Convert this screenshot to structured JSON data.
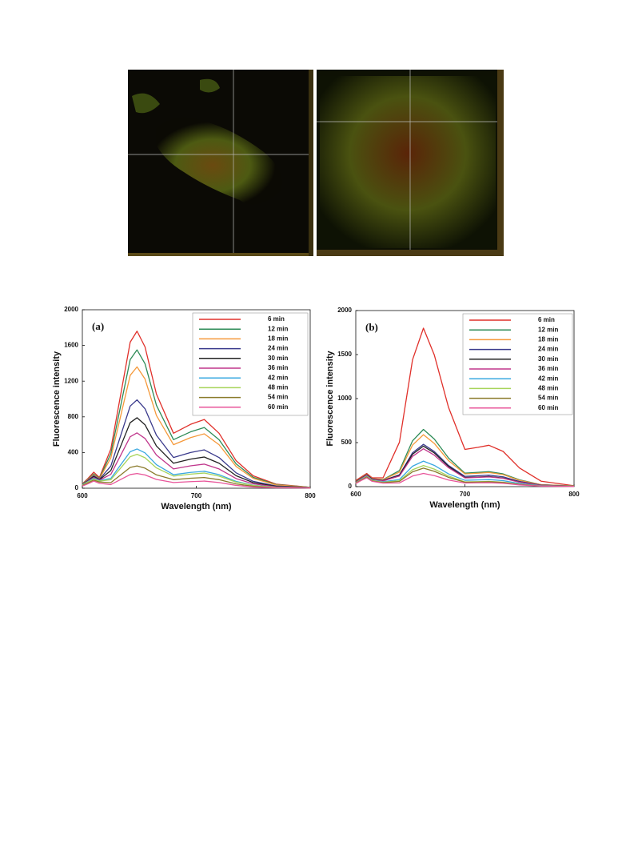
{
  "chart_data": [
    {
      "type": "line",
      "panel_label": "(a)",
      "x_label": "Wavelength (nm)",
      "y_label": "Fluorescence intensity",
      "x": [
        600,
        605,
        610,
        615,
        625,
        635,
        642,
        648,
        655,
        665,
        680,
        695,
        707,
        720,
        735,
        750,
        770,
        800
      ],
      "xlim": [
        600,
        800
      ],
      "xticks": [
        600,
        700,
        800
      ],
      "ylim": [
        0,
        2000
      ],
      "yticks": [
        0,
        400,
        800,
        1200,
        1600,
        2000
      ],
      "legend": "upper right",
      "series": [
        {
          "name": "6 min",
          "color": "#e0302a",
          "values": [
            50,
            110,
            180,
            120,
            440,
            1144,
            1637,
            1760,
            1584,
            1056,
            616,
            716,
            770,
            616,
            308,
            139,
            46,
            10
          ]
        },
        {
          "name": "12 min",
          "color": "#2e8b57",
          "values": [
            50,
            100,
            160,
            110,
            388,
            1008,
            1442,
            1550,
            1395,
            930,
            544,
            632,
            680,
            544,
            272,
            122,
            41,
            10
          ]
        },
        {
          "name": "18 min",
          "color": "#f5993a",
          "values": [
            50,
            95,
            150,
            105,
            340,
            884,
            1265,
            1360,
            1224,
            816,
            488,
            567,
            610,
            488,
            244,
            110,
            37,
            10
          ]
        },
        {
          "name": "24 min",
          "color": "#3a3a8c",
          "values": [
            45,
            90,
            140,
            100,
            248,
            644,
            921,
            990,
            891,
            594,
            344,
            400,
            430,
            344,
            172,
            77,
            26,
            8
          ]
        },
        {
          "name": "30 min",
          "color": "#222222",
          "values": [
            45,
            85,
            130,
            95,
            198,
            514,
            735,
            790,
            711,
            474,
            280,
            326,
            350,
            280,
            140,
            63,
            21,
            8
          ]
        },
        {
          "name": "36 min",
          "color": "#c0368c",
          "values": [
            40,
            80,
            120,
            90,
            155,
            403,
            577,
            620,
            558,
            372,
            216,
            251,
            270,
            216,
            108,
            49,
            16,
            6
          ]
        },
        {
          "name": "42 min",
          "color": "#3aa8e0",
          "values": [
            40,
            75,
            110,
            85,
            110,
            286,
            409,
            440,
            396,
            264,
            152,
            177,
            190,
            152,
            76,
            34,
            11,
            5
          ]
        },
        {
          "name": "48 min",
          "color": "#a8d45a",
          "values": [
            35,
            70,
            100,
            80,
            95,
            247,
            353,
            380,
            342,
            228,
            136,
            158,
            170,
            136,
            68,
            31,
            10,
            5
          ]
        },
        {
          "name": "54 min",
          "color": "#8a7a2a",
          "values": [
            30,
            60,
            90,
            70,
            63,
            163,
            233,
            250,
            225,
            150,
            96,
            112,
            120,
            96,
            48,
            22,
            7,
            4
          ]
        },
        {
          "name": "60 min",
          "color": "#e8559a",
          "values": [
            25,
            50,
            80,
            55,
            41,
            107,
            153,
            165,
            149,
            99,
            64,
            74,
            80,
            64,
            32,
            14,
            5,
            3
          ]
        }
      ]
    },
    {
      "type": "line",
      "panel_label": "(b)",
      "x_label": "Wavelength (nm)",
      "y_label": "Fluorescence intensity",
      "x": [
        600,
        605,
        610,
        615,
        625,
        640,
        652,
        662,
        672,
        685,
        700,
        712,
        722,
        735,
        750,
        770,
        800
      ],
      "xlim": [
        600,
        800
      ],
      "xticks": [
        600,
        700,
        800
      ],
      "ylim": [
        0,
        2000
      ],
      "yticks": [
        0,
        500,
        1000,
        1500,
        2000
      ],
      "legend": "upper right",
      "series": [
        {
          "name": "6 min",
          "color": "#e0302a",
          "values": [
            70,
            110,
            150,
            100,
            100,
            504,
            1440,
            1800,
            1494,
            900,
            423,
            447,
            470,
            400,
            212,
            61,
            10
          ]
        },
        {
          "name": "12 min",
          "color": "#2e8b57",
          "values": [
            60,
            100,
            140,
            90,
            80,
            182,
            520,
            650,
            540,
            325,
            153,
            162,
            170,
            145,
            77,
            22,
            8
          ]
        },
        {
          "name": "18 min",
          "color": "#f5993a",
          "values": [
            60,
            100,
            140,
            90,
            78,
            165,
            472,
            590,
            490,
            295,
            144,
            152,
            160,
            136,
            72,
            21,
            8
          ]
        },
        {
          "name": "24 min",
          "color": "#3a3a8c",
          "values": [
            55,
            95,
            135,
            85,
            70,
            134,
            384,
            480,
            398,
            240,
            117,
            124,
            130,
            111,
            59,
            17,
            7
          ]
        },
        {
          "name": "30 min",
          "color": "#222222",
          "values": [
            55,
            95,
            135,
            85,
            68,
            129,
            368,
            460,
            382,
            230,
            104,
            109,
            115,
            98,
            52,
            15,
            7
          ]
        },
        {
          "name": "36 min",
          "color": "#c0368c",
          "values": [
            50,
            90,
            130,
            80,
            65,
            120,
            344,
            430,
            357,
            215,
            99,
            105,
            110,
            94,
            50,
            14,
            6
          ]
        },
        {
          "name": "42 min",
          "color": "#3aa8e0",
          "values": [
            45,
            85,
            120,
            75,
            55,
            81,
            232,
            290,
            241,
            145,
            72,
            76,
            80,
            68,
            36,
            10,
            5
          ]
        },
        {
          "name": "48 min",
          "color": "#a8d45a",
          "values": [
            45,
            80,
            115,
            70,
            50,
            67,
            192,
            240,
            199,
            120,
            54,
            57,
            60,
            51,
            27,
            8,
            5
          ]
        },
        {
          "name": "54 min",
          "color": "#8a7a2a",
          "values": [
            40,
            75,
            110,
            65,
            45,
            59,
            168,
            210,
            174,
            105,
            50,
            52,
            55,
            47,
            25,
            7,
            4
          ]
        },
        {
          "name": "60 min",
          "color": "#e8559a",
          "values": [
            35,
            70,
            100,
            60,
            40,
            42,
            120,
            150,
            125,
            75,
            41,
            43,
            45,
            38,
            20,
            6,
            3
          ]
        }
      ]
    }
  ]
}
